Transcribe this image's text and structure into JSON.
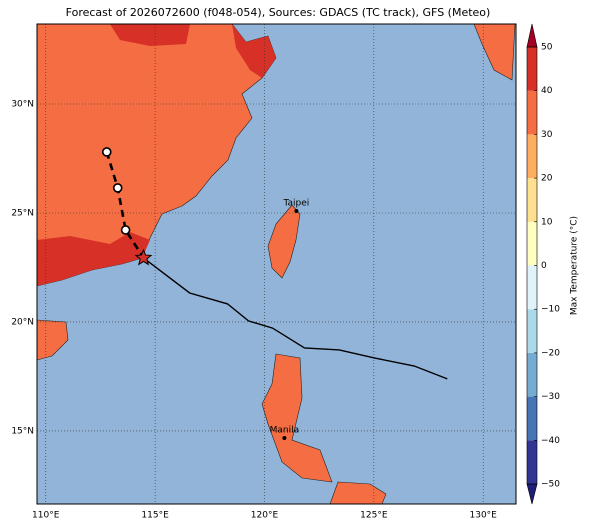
{
  "map": {
    "title": "Forecast of 2026072600 (f048-054), Sources: GDACS (TC track), GFS (Meteo)",
    "lonlim": [
      109.6,
      131.5
    ],
    "latlim": [
      11.65,
      33.67
    ],
    "lonticks": [
      {
        "value": 110,
        "label": "110°E"
      },
      {
        "value": 115,
        "label": "115°E"
      },
      {
        "value": 120,
        "label": "120°E"
      },
      {
        "value": 125,
        "label": "125°E"
      },
      {
        "value": 130,
        "label": "130°E"
      }
    ],
    "latticks": [
      {
        "value": 15,
        "label": "15°N"
      },
      {
        "value": 20,
        "label": "20°N"
      },
      {
        "value": 25,
        "label": "25°N"
      },
      {
        "value": 30,
        "label": "30°N"
      }
    ],
    "grid": true,
    "past_track": {
      "lon": [
        114.47,
        116.58,
        118.31,
        119.27,
        120.37,
        121.83,
        123.42,
        125.02,
        126.85,
        128.36
      ],
      "lat": [
        22.94,
        21.33,
        20.83,
        20.05,
        19.72,
        18.81,
        18.72,
        18.35,
        17.98,
        17.39
      ]
    },
    "forecast_track": {
      "lon": [
        112.79,
        113.29,
        113.65,
        114.47
      ],
      "lat": [
        27.8,
        26.15,
        24.22,
        22.94
      ]
    },
    "cities": [
      {
        "name": "Taipei",
        "lon": 121.46,
        "lat": 25.09
      },
      {
        "name": "Manila",
        "lon": 120.91,
        "lat": 14.68
      }
    ],
    "colorbar": {
      "label": "Max Temperature (°C)",
      "levels": [
        -50,
        -40,
        -30,
        -20,
        -10,
        0,
        10,
        20,
        30,
        40,
        50
      ],
      "colors": [
        "#313695",
        "#4575b4",
        "#74add1",
        "#abd9e9",
        "#e0f3f8",
        "#ffffbf",
        "#fee090",
        "#fdae61",
        "#f46d43",
        "#d73027"
      ],
      "under_color": "#1f1f7a",
      "over_color": "#a50026",
      "ticks": [
        {
          "value": -50,
          "label": "−50"
        },
        {
          "value": -40,
          "label": "−40"
        },
        {
          "value": -30,
          "label": "−30"
        },
        {
          "value": -20,
          "label": "−20"
        },
        {
          "value": -10,
          "label": "−10"
        },
        0,
        10,
        20,
        30,
        40,
        50
      ]
    }
  }
}
